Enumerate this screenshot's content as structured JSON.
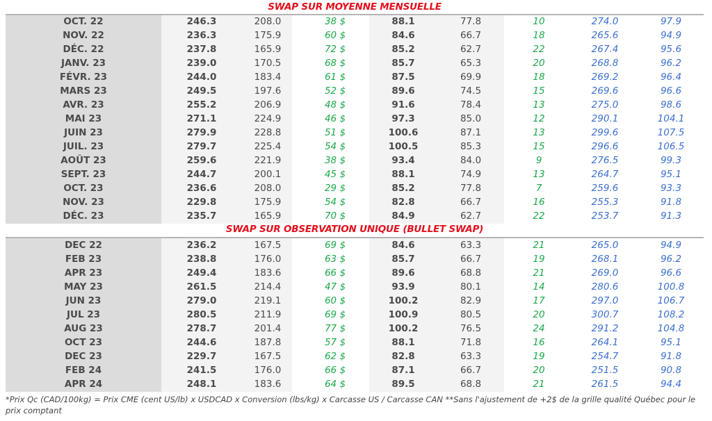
{
  "section1": {
    "title": "SWAP SUR MOYENNE MENSUELLE",
    "rows": [
      [
        "OCT. 22",
        "246.3",
        "208.0",
        "38 $",
        "88.1",
        "77.8",
        "10",
        "274.0",
        "97.9"
      ],
      [
        "NOV. 22",
        "236.3",
        "175.9",
        "60 $",
        "84.6",
        "66.7",
        "18",
        "265.6",
        "94.9"
      ],
      [
        "DÉC. 22",
        "237.8",
        "165.9",
        "72 $",
        "85.2",
        "62.7",
        "22",
        "267.4",
        "95.6"
      ],
      [
        "JANV. 23",
        "239.0",
        "170.5",
        "68 $",
        "85.7",
        "65.3",
        "20",
        "268.8",
        "96.2"
      ],
      [
        "FÉVR. 23",
        "244.0",
        "183.4",
        "61 $",
        "87.5",
        "69.9",
        "18",
        "269.2",
        "96.4"
      ],
      [
        "MARS 23",
        "249.5",
        "197.6",
        "52 $",
        "89.6",
        "74.5",
        "15",
        "269.6",
        "96.6"
      ],
      [
        "AVR. 23",
        "255.2",
        "206.9",
        "48 $",
        "91.6",
        "78.4",
        "13",
        "275.0",
        "98.6"
      ],
      [
        "MAI 23",
        "271.1",
        "224.9",
        "46 $",
        "97.3",
        "85.0",
        "12",
        "290.1",
        "104.1"
      ],
      [
        "JUIN 23",
        "279.9",
        "228.8",
        "51 $",
        "100.6",
        "87.1",
        "13",
        "299.6",
        "107.5"
      ],
      [
        "JUIL. 23",
        "279.7",
        "225.4",
        "54 $",
        "100.5",
        "85.3",
        "15",
        "296.6",
        "106.5"
      ],
      [
        "AOÛT 23",
        "259.6",
        "221.9",
        "38 $",
        "93.4",
        "84.0",
        "9",
        "276.5",
        "99.3"
      ],
      [
        "SEPT. 23",
        "244.7",
        "200.1",
        "45 $",
        "88.1",
        "74.9",
        "13",
        "264.7",
        "95.1"
      ],
      [
        "OCT. 23",
        "236.6",
        "208.0",
        "29 $",
        "85.2",
        "77.8",
        "7",
        "259.6",
        "93.3"
      ],
      [
        "NOV. 23",
        "229.8",
        "175.9",
        "54 $",
        "82.8",
        "66.7",
        "16",
        "255.3",
        "91.8"
      ],
      [
        "DÉC. 23",
        "235.7",
        "165.9",
        "70 $",
        "84.9",
        "62.7",
        "22",
        "253.7",
        "91.3"
      ]
    ]
  },
  "section2": {
    "title": "SWAP SUR OBSERVATION UNIQUE (BULLET SWAP)",
    "rows": [
      [
        "DEC 22",
        "236.2",
        "167.5",
        "69 $",
        "84.6",
        "63.3",
        "21",
        "265.0",
        "94.9"
      ],
      [
        "FEB 23",
        "238.8",
        "176.0",
        "63 $",
        "85.7",
        "66.7",
        "19",
        "268.1",
        "96.2"
      ],
      [
        "APR 23",
        "249.4",
        "183.6",
        "66 $",
        "89.6",
        "68.8",
        "21",
        "269.0",
        "96.6"
      ],
      [
        "MAY 23",
        "261.5",
        "214.4",
        "47 $",
        "93.9",
        "80.1",
        "14",
        "280.6",
        "100.8"
      ],
      [
        "JUN 23",
        "279.0",
        "219.1",
        "60 $",
        "100.2",
        "82.9",
        "17",
        "297.0",
        "106.7"
      ],
      [
        "JUL 23",
        "280.5",
        "211.9",
        "69 $",
        "100.9",
        "80.5",
        "20",
        "300.7",
        "108.2"
      ],
      [
        "AUG 23",
        "278.7",
        "201.4",
        "77 $",
        "100.2",
        "76.5",
        "24",
        "291.2",
        "104.8"
      ],
      [
        "OCT 23",
        "244.6",
        "187.8",
        "57 $",
        "88.1",
        "71.8",
        "16",
        "264.1",
        "95.1"
      ],
      [
        "DEC 23",
        "229.7",
        "167.5",
        "62 $",
        "82.8",
        "63.3",
        "19",
        "254.7",
        "91.8"
      ],
      [
        "FEB 24",
        "241.5",
        "176.0",
        "66 $",
        "87.1",
        "66.7",
        "20",
        "251.5",
        "90.8"
      ],
      [
        "APR 24",
        "248.1",
        "183.6",
        "64 $",
        "89.5",
        "68.8",
        "21",
        "261.5",
        "94.4"
      ]
    ]
  },
  "footnote": "*Prix Qc (CAD/100kg) = Prix CME (cent US/lb) x USDCAD x Conversion (lbs/kg) x Carcasse US / Carcasse CAN **Sans l'ajustement de +2$ de la grille qualité Québec pour le prix comptant",
  "colors": {
    "title": "#e3101c",
    "green": "#1aa84a",
    "blue": "#3a6fcf"
  }
}
